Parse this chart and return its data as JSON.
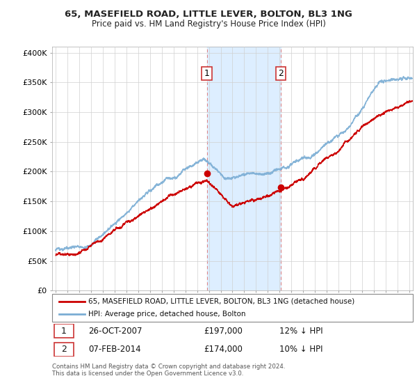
{
  "title": "65, MASEFIELD ROAD, LITTLE LEVER, BOLTON, BL3 1NG",
  "subtitle": "Price paid vs. HM Land Registry's House Price Index (HPI)",
  "ylabel_ticks": [
    "£0",
    "£50K",
    "£100K",
    "£150K",
    "£200K",
    "£250K",
    "£300K",
    "£350K",
    "£400K"
  ],
  "ylim": [
    0,
    410000
  ],
  "xlim_start": 1994.7,
  "xlim_end": 2025.3,
  "transaction1_x": 2007.82,
  "transaction1_y": 197000,
  "transaction1_label": "1",
  "transaction1_date": "26-OCT-2007",
  "transaction1_price": "£197,000",
  "transaction1_hpi": "12% ↓ HPI",
  "transaction2_x": 2014.08,
  "transaction2_y": 174000,
  "transaction2_label": "2",
  "transaction2_date": "07-FEB-2014",
  "transaction2_price": "£174,000",
  "transaction2_hpi": "10% ↓ HPI",
  "shading_x1": 2007.82,
  "shading_x2": 2014.08,
  "line1_color": "#cc0000",
  "line2_color": "#7aadd4",
  "shading_color": "#ddeeff",
  "marker_color": "#cc0000",
  "vline_color": "#dd8888",
  "legend_label1": "65, MASEFIELD ROAD, LITTLE LEVER, BOLTON, BL3 1NG (detached house)",
  "legend_label2": "HPI: Average price, detached house, Bolton",
  "footer": "Contains HM Land Registry data © Crown copyright and database right 2024.\nThis data is licensed under the Open Government Licence v3.0.",
  "background_color": "#ffffff",
  "plot_bg_color": "#ffffff"
}
